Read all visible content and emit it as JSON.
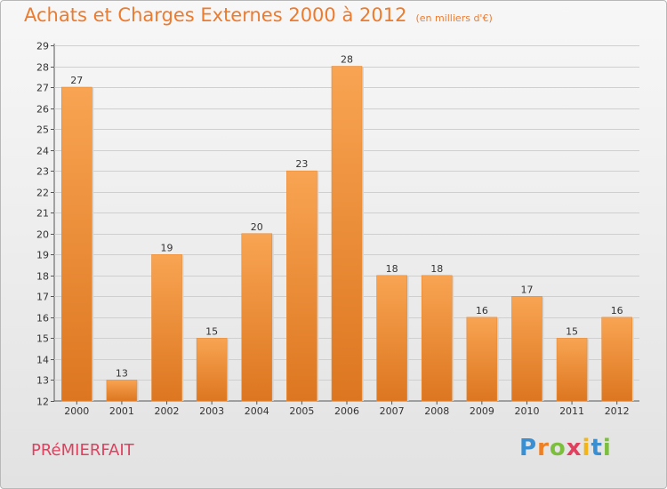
{
  "header": {
    "title": "Achats et Charges Externes 2000 à 2012",
    "unit": "(en milliers d'€)"
  },
  "footer": {
    "town": "PRéMIERFAIT",
    "brand_letters": [
      "P",
      "r",
      "o",
      "x",
      "i",
      "t",
      "i"
    ]
  },
  "colors": {
    "bar_light": "#f8a452",
    "bar_dark": "#dd7620",
    "grid": "#cfcfcf",
    "title": "#ee7a2c"
  },
  "chart_data": {
    "type": "bar",
    "categories": [
      "2000",
      "2001",
      "2002",
      "2003",
      "2004",
      "2005",
      "2006",
      "2007",
      "2008",
      "2009",
      "2010",
      "2011",
      "2012"
    ],
    "values": [
      27,
      13,
      19,
      15,
      20,
      23,
      28,
      18,
      18,
      16,
      17,
      15,
      16
    ],
    "ylim": [
      12,
      29
    ],
    "yticks": [
      12,
      13,
      14,
      15,
      16,
      17,
      18,
      19,
      20,
      21,
      22,
      23,
      24,
      25,
      26,
      27,
      28,
      29
    ],
    "grid": true
  }
}
